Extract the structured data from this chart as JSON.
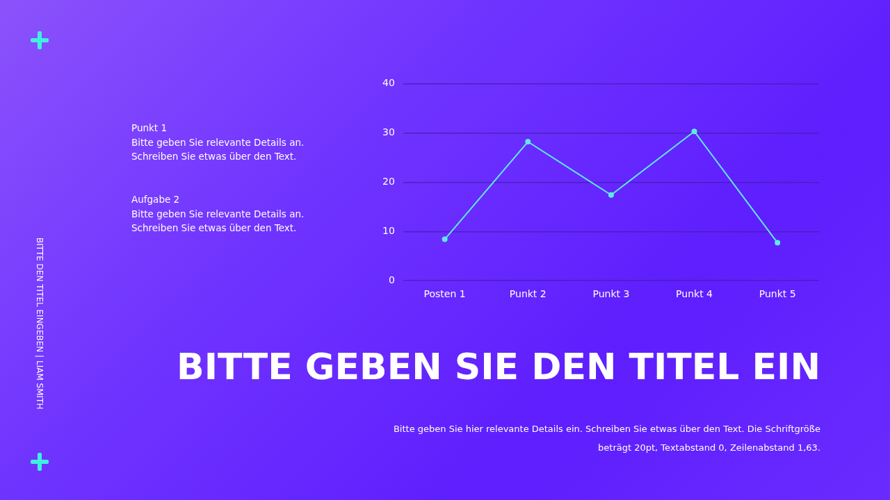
{
  "chart_data": {
    "type": "line",
    "title": "BITTE GEBEN SIE DEN TITEL EIN",
    "categories": [
      "Posten 1",
      "Punkt 2",
      "Punkt 3",
      "Punkt 4",
      "Punkt 5"
    ],
    "series": [
      {
        "color": "#5eeae6",
        "values": [
          8.4,
          28.2,
          17.4,
          30.3,
          7.7
        ]
      }
    ],
    "ylim": [
      0,
      40
    ],
    "yticks": [
      0,
      10,
      20,
      30,
      40
    ],
    "grid": "y",
    "legend": false,
    "marker": "circle",
    "line_style": "solid",
    "annotations": [
      "Punkt 1",
      "Bitte geben Sie relevante Details an.",
      "Schreiben Sie etwas über den Text.",
      "Aufgabe 2",
      "Bitte geben Sie relevante Details an.",
      "Schreiben Sie etwas über den Text.",
      "BITTE DEN TITEL EINGEBEN | LIAM SMITH",
      "Bitte geben Sie hier relevante Details ein. Schreiben Sie etwas über den Text. Die Schriftgröße beträgt 20pt, Textabstand 0, Zeilenabstand 1,63."
    ]
  }
}
